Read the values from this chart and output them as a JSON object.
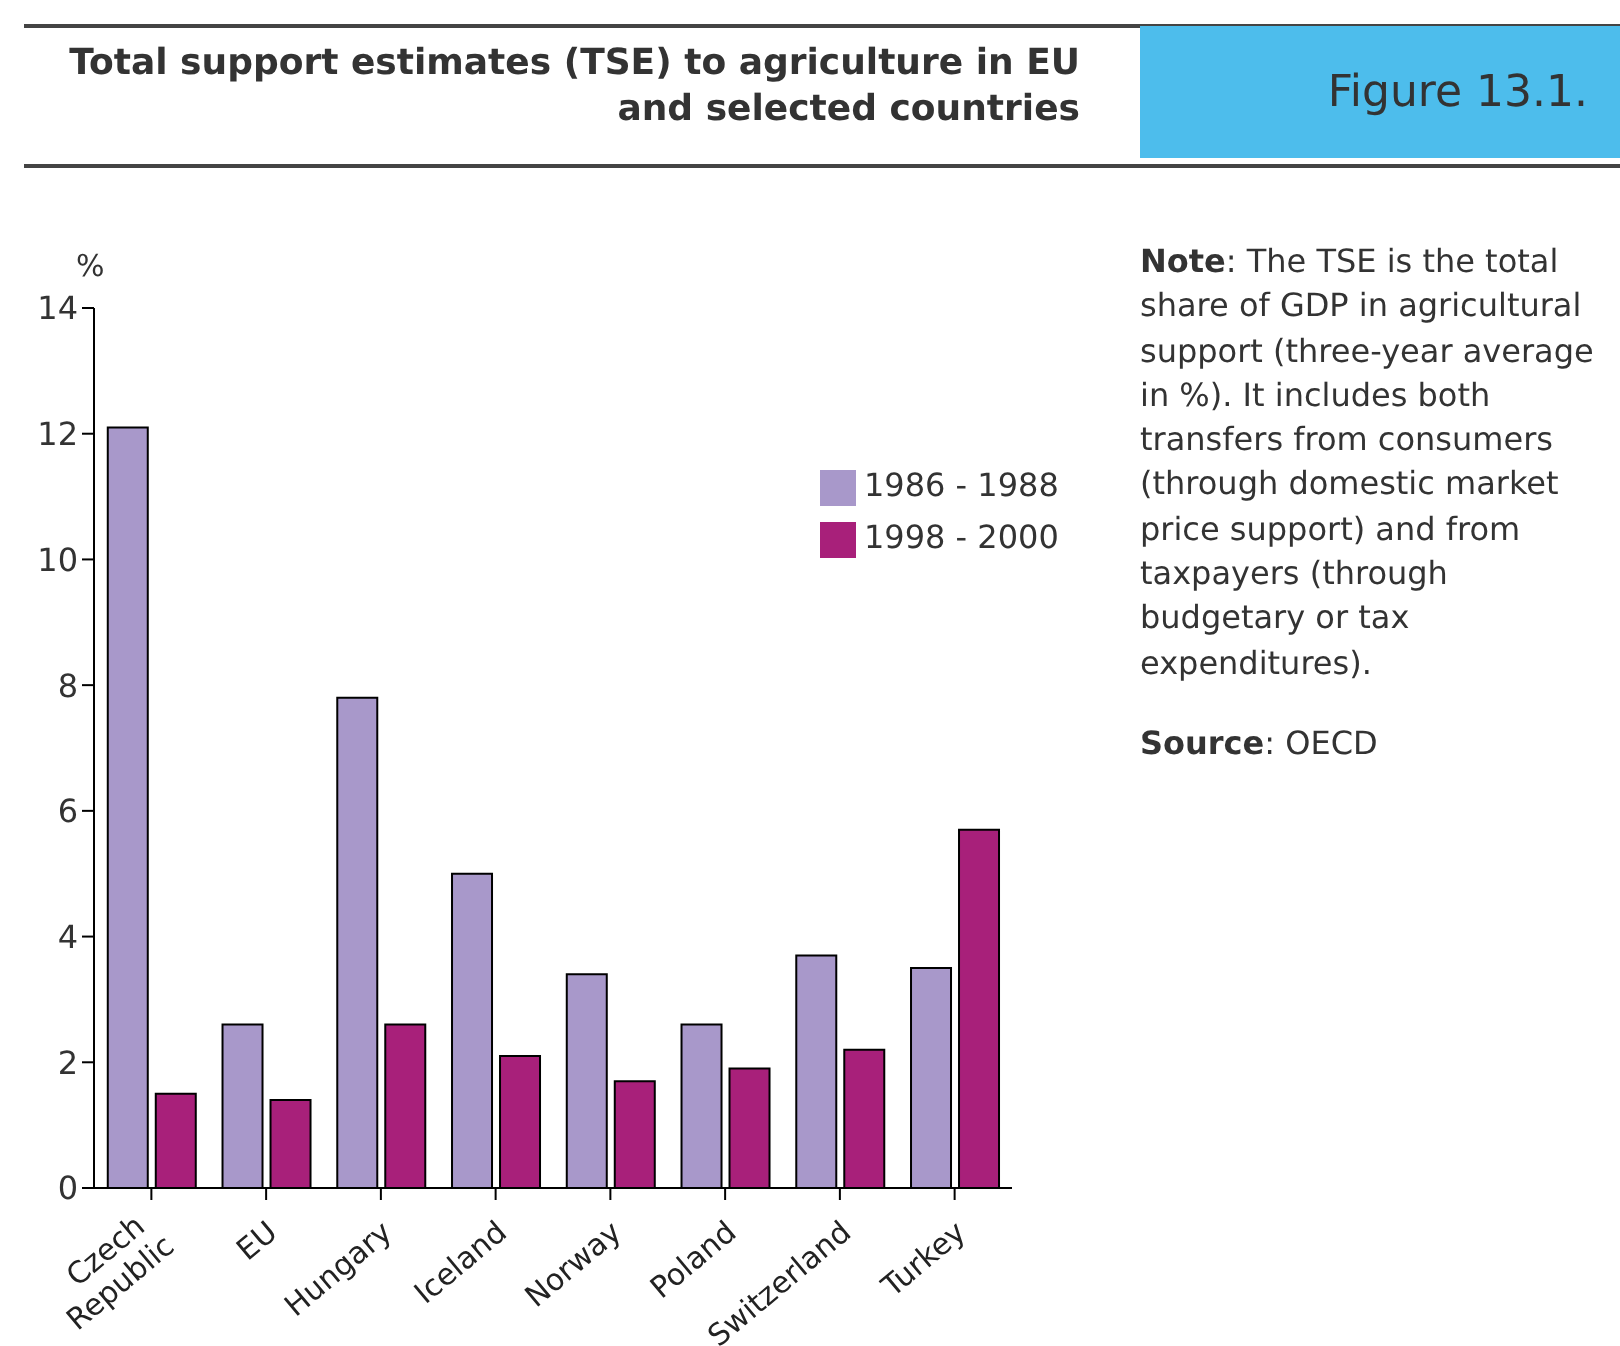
{
  "chart_data": {
    "type": "bar",
    "title": "Total support estimates (TSE) to agriculture in EU and selected countries",
    "subtitle": "Figure 13.1.",
    "ylabel": "%",
    "categories": [
      "Czech Republic",
      "EU",
      "Hungary",
      "Iceland",
      "Norway",
      "Poland",
      "Switzerland",
      "Turkey"
    ],
    "series": [
      {
        "name": "1986 - 1988",
        "color": "#a898ca",
        "values": [
          12.1,
          2.6,
          7.8,
          5.0,
          3.4,
          2.6,
          3.7,
          3.5
        ]
      },
      {
        "name": "1998 - 2000",
        "color": "#a8207a",
        "values": [
          1.5,
          1.4,
          2.6,
          2.1,
          1.7,
          1.9,
          2.2,
          5.7
        ]
      }
    ],
    "ylim": [
      0,
      14
    ],
    "yticks": [
      0,
      2,
      4,
      6,
      8,
      10,
      12,
      14
    ],
    "grid": false,
    "legend": "top right",
    "annotations": [
      "Note: The TSE is the total share of GDP in agricultural support (three-year average in %). It includes both transfers from consumers (through domestic market price support) and from taxpayers (through budgetary or tax expenditures).",
      "Source: OECD"
    ]
  }
}
